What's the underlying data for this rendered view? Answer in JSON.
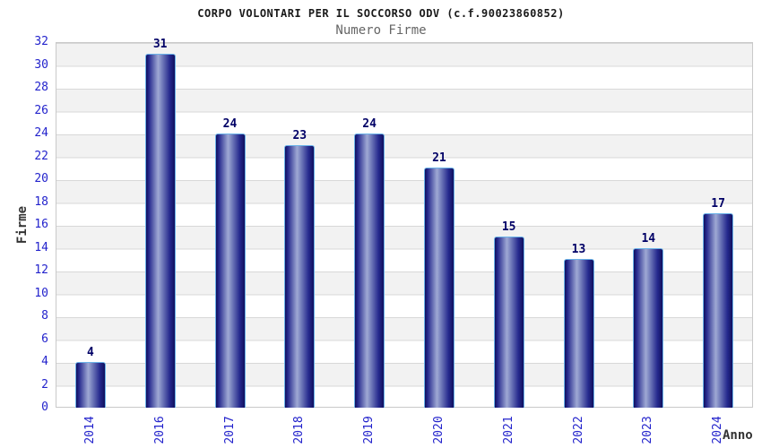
{
  "chart_data": {
    "type": "bar",
    "title": "CORPO VOLONTARI PER IL SOCCORSO ODV (c.f.90023860852)",
    "subtitle": "Numero Firme",
    "xlabel": "Anno",
    "ylabel": "Firme",
    "categories": [
      "2014",
      "2016",
      "2017",
      "2018",
      "2019",
      "2020",
      "2021",
      "2022",
      "2023",
      "2024"
    ],
    "values": [
      4,
      31,
      24,
      23,
      24,
      21,
      15,
      13,
      14,
      17
    ],
    "ylim": [
      0,
      32
    ],
    "ytick_step": 2,
    "ytick_labels": [
      "0",
      "2",
      "4",
      "6",
      "8",
      "10",
      "12",
      "14",
      "16",
      "18",
      "20",
      "22",
      "24",
      "26",
      "28",
      "30",
      "32"
    ],
    "grid": "horizontal",
    "legend": "none",
    "band_fill": "alternating",
    "colors": {
      "title": "#1a1a1a",
      "subtitle": "#666666",
      "tick_label": "#2323cc",
      "value_label": "#000066",
      "axis_title": "#333333",
      "bar_edge": "#10105e",
      "bar_mid": "#9fa9d4",
      "bar_border": "#6ab2e8",
      "stripe": "#f2f2f2",
      "gridline": "#d8d8d8",
      "plot_border": "#c9c9c9"
    }
  }
}
